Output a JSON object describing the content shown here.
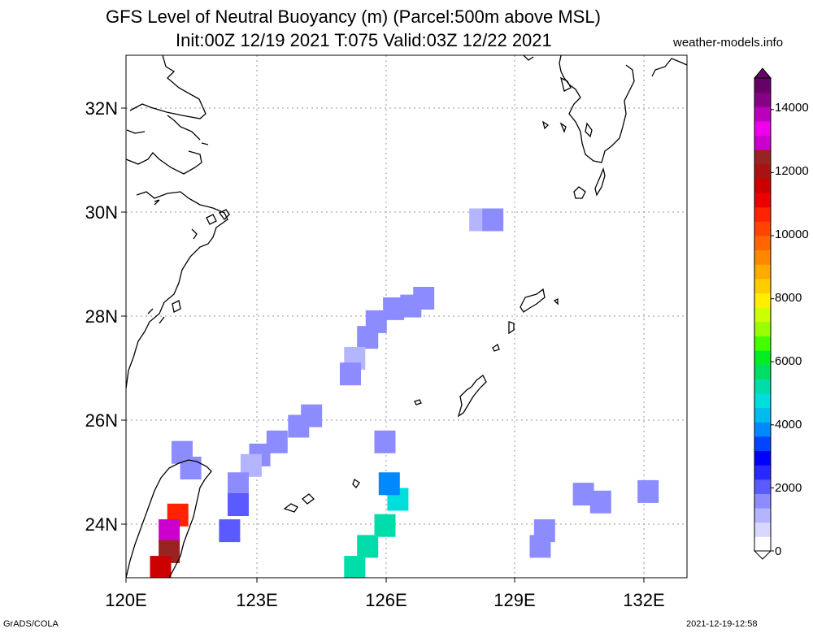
{
  "title": {
    "line1": "GFS Level of Neutral Buoyancy (m) (Parcel:500m above MSL)",
    "line2": "Init:00Z 12/19 2021 T:075 Valid:03Z 12/22 2021"
  },
  "site_label": "weather-models.info",
  "footer": {
    "left": "GrADS/COLA",
    "right": "2021-12-19-12:58"
  },
  "axes": {
    "lon_labels": [
      "120E",
      "123E",
      "126E",
      "129E",
      "132E"
    ],
    "lat_labels": [
      "32N",
      "30N",
      "28N",
      "26N",
      "24N"
    ]
  },
  "colorbar": {
    "labels": [
      "0",
      "2000",
      "4000",
      "6000",
      "8000",
      "10000",
      "12000",
      "14000"
    ],
    "colors": [
      "#ffffff",
      "#d8d8ff",
      "#b4b4ff",
      "#8c8cff",
      "#5a5aff",
      "#2828ff",
      "#0000ff",
      "#0044ff",
      "#0088ff",
      "#00bbee",
      "#00dddd",
      "#00ddaa",
      "#00dd66",
      "#00ee22",
      "#44ff00",
      "#99ff00",
      "#ccff00",
      "#ffee00",
      "#ffcc00",
      "#ffaa00",
      "#ff8800",
      "#ff6600",
      "#ff4400",
      "#ff2200",
      "#ee0000",
      "#cc0000",
      "#aa1111",
      "#992222",
      "#cc00cc",
      "#ee00ee",
      "#bb00bb",
      "#880088",
      "#660066"
    ]
  },
  "chart_data": {
    "type": "heatmap",
    "variable": "Level of Neutral Buoyancy (m)",
    "lon_range": [
      120,
      133
    ],
    "lat_range": [
      23,
      33
    ],
    "value_range": [
      0,
      15000
    ],
    "cells": [
      {
        "lon": 128.2,
        "lat": 29.85,
        "value": 1200
      },
      {
        "lon": 128.5,
        "lat": 29.85,
        "value": 1500
      },
      {
        "lon": 126.9,
        "lat": 28.35,
        "value": 1700
      },
      {
        "lon": 126.6,
        "lat": 28.2,
        "value": 1600
      },
      {
        "lon": 126.2,
        "lat": 28.15,
        "value": 1500
      },
      {
        "lon": 125.8,
        "lat": 27.9,
        "value": 1500
      },
      {
        "lon": 125.6,
        "lat": 27.6,
        "value": 1400
      },
      {
        "lon": 125.3,
        "lat": 27.2,
        "value": 1300
      },
      {
        "lon": 125.2,
        "lat": 26.9,
        "value": 1500
      },
      {
        "lon": 124.3,
        "lat": 26.1,
        "value": 1700
      },
      {
        "lon": 124.0,
        "lat": 25.9,
        "value": 1400
      },
      {
        "lon": 123.5,
        "lat": 25.6,
        "value": 1500
      },
      {
        "lon": 123.1,
        "lat": 25.35,
        "value": 1500
      },
      {
        "lon": 122.9,
        "lat": 25.15,
        "value": 1300
      },
      {
        "lon": 122.6,
        "lat": 24.8,
        "value": 1500
      },
      {
        "lon": 122.6,
        "lat": 24.4,
        "value": 2000
      },
      {
        "lon": 122.4,
        "lat": 23.9,
        "value": 2200
      },
      {
        "lon": 121.3,
        "lat": 25.4,
        "value": 1700
      },
      {
        "lon": 121.5,
        "lat": 25.1,
        "value": 1400
      },
      {
        "lon": 126.0,
        "lat": 25.6,
        "value": 1600
      },
      {
        "lon": 121.2,
        "lat": 24.2,
        "value": 10500
      },
      {
        "lon": 121.0,
        "lat": 23.9,
        "value": 13000
      },
      {
        "lon": 121.0,
        "lat": 23.5,
        "value": 12500
      },
      {
        "lon": 120.8,
        "lat": 23.2,
        "value": 11500
      },
      {
        "lon": 126.3,
        "lat": 24.5,
        "value": 4800
      },
      {
        "lon": 126.0,
        "lat": 24.0,
        "value": 5000
      },
      {
        "lon": 125.6,
        "lat": 23.6,
        "value": 5300
      },
      {
        "lon": 125.3,
        "lat": 23.2,
        "value": 5000
      },
      {
        "lon": 126.1,
        "lat": 24.8,
        "value": 4000
      },
      {
        "lon": 129.7,
        "lat": 23.9,
        "value": 1500
      },
      {
        "lon": 129.6,
        "lat": 23.6,
        "value": 1600
      },
      {
        "lon": 130.6,
        "lat": 24.6,
        "value": 1600
      },
      {
        "lon": 131.0,
        "lat": 24.45,
        "value": 1500
      },
      {
        "lon": 132.1,
        "lat": 24.65,
        "value": 1600
      }
    ]
  }
}
